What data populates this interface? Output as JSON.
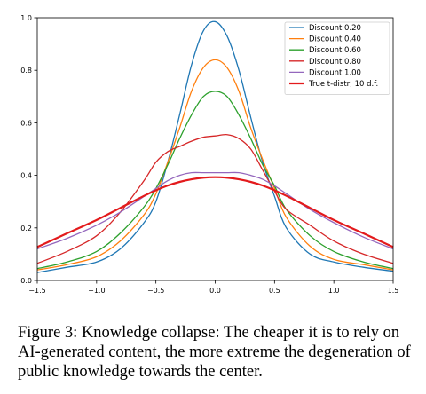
{
  "chart_data": {
    "type": "line",
    "title": "",
    "xlabel": "",
    "ylabel": "",
    "xlim": [
      -1.5,
      1.5
    ],
    "ylim": [
      0.0,
      1.0
    ],
    "xticks": [
      -1.5,
      -1.0,
      -0.5,
      0.0,
      0.5,
      1.0,
      1.5
    ],
    "xtick_labels": [
      "−1.5",
      "−1.0",
      "−0.5",
      "0.0",
      "0.5",
      "1.0",
      "1.5"
    ],
    "yticks": [
      0.0,
      0.2,
      0.4,
      0.6,
      0.8,
      1.0
    ],
    "ytick_labels": [
      "0.0",
      "0.2",
      "0.4",
      "0.6",
      "0.8",
      "1.0"
    ],
    "grid": false,
    "legend_position": "top-right",
    "x": [
      -1.5,
      -1.25,
      -1.0,
      -0.8,
      -0.6,
      -0.5,
      -0.4,
      -0.3,
      -0.2,
      -0.1,
      0.0,
      0.1,
      0.2,
      0.3,
      0.4,
      0.5,
      0.6,
      0.8,
      1.0,
      1.25,
      1.5
    ],
    "series": [
      {
        "name": "Discount 0.20",
        "color": "#1f77b4",
        "width": 1.3,
        "values": [
          0.03,
          0.05,
          0.07,
          0.12,
          0.22,
          0.3,
          0.45,
          0.63,
          0.82,
          0.95,
          0.985,
          0.93,
          0.8,
          0.62,
          0.45,
          0.32,
          0.2,
          0.1,
          0.07,
          0.05,
          0.035
        ]
      },
      {
        "name": "Discount 0.40",
        "color": "#ff7f0e",
        "width": 1.3,
        "values": [
          0.04,
          0.06,
          0.09,
          0.15,
          0.25,
          0.33,
          0.45,
          0.58,
          0.72,
          0.81,
          0.84,
          0.81,
          0.72,
          0.58,
          0.46,
          0.35,
          0.24,
          0.13,
          0.08,
          0.06,
          0.04
        ]
      },
      {
        "name": "Discount 0.60",
        "color": "#2ca02c",
        "width": 1.3,
        "values": [
          0.045,
          0.07,
          0.11,
          0.18,
          0.28,
          0.35,
          0.44,
          0.54,
          0.63,
          0.7,
          0.72,
          0.7,
          0.63,
          0.54,
          0.44,
          0.36,
          0.27,
          0.17,
          0.11,
          0.07,
          0.045
        ]
      },
      {
        "name": "Discount 0.80",
        "color": "#d62728",
        "width": 1.3,
        "values": [
          0.065,
          0.11,
          0.17,
          0.26,
          0.38,
          0.45,
          0.49,
          0.51,
          0.53,
          0.545,
          0.55,
          0.555,
          0.54,
          0.5,
          0.42,
          0.34,
          0.27,
          0.21,
          0.15,
          0.1,
          0.065
        ]
      },
      {
        "name": "Discount 1.00",
        "color": "#9467bd",
        "width": 1.3,
        "values": [
          0.12,
          0.16,
          0.21,
          0.26,
          0.32,
          0.35,
          0.38,
          0.4,
          0.41,
          0.41,
          0.41,
          0.41,
          0.41,
          0.4,
          0.385,
          0.36,
          0.33,
          0.27,
          0.22,
          0.165,
          0.12
        ]
      },
      {
        "name": "True t-distr, 10 d.f.",
        "color": "#e31a1c",
        "width": 2.2,
        "values": [
          0.127,
          0.179,
          0.23,
          0.276,
          0.322,
          0.343,
          0.361,
          0.375,
          0.385,
          0.391,
          0.393,
          0.391,
          0.385,
          0.375,
          0.361,
          0.343,
          0.322,
          0.276,
          0.23,
          0.179,
          0.127
        ]
      }
    ]
  },
  "caption": "Figure 3: Knowledge collapse: The cheaper it is to rely on AI-generated content, the more extreme the degeneration of public knowledge towards the center."
}
